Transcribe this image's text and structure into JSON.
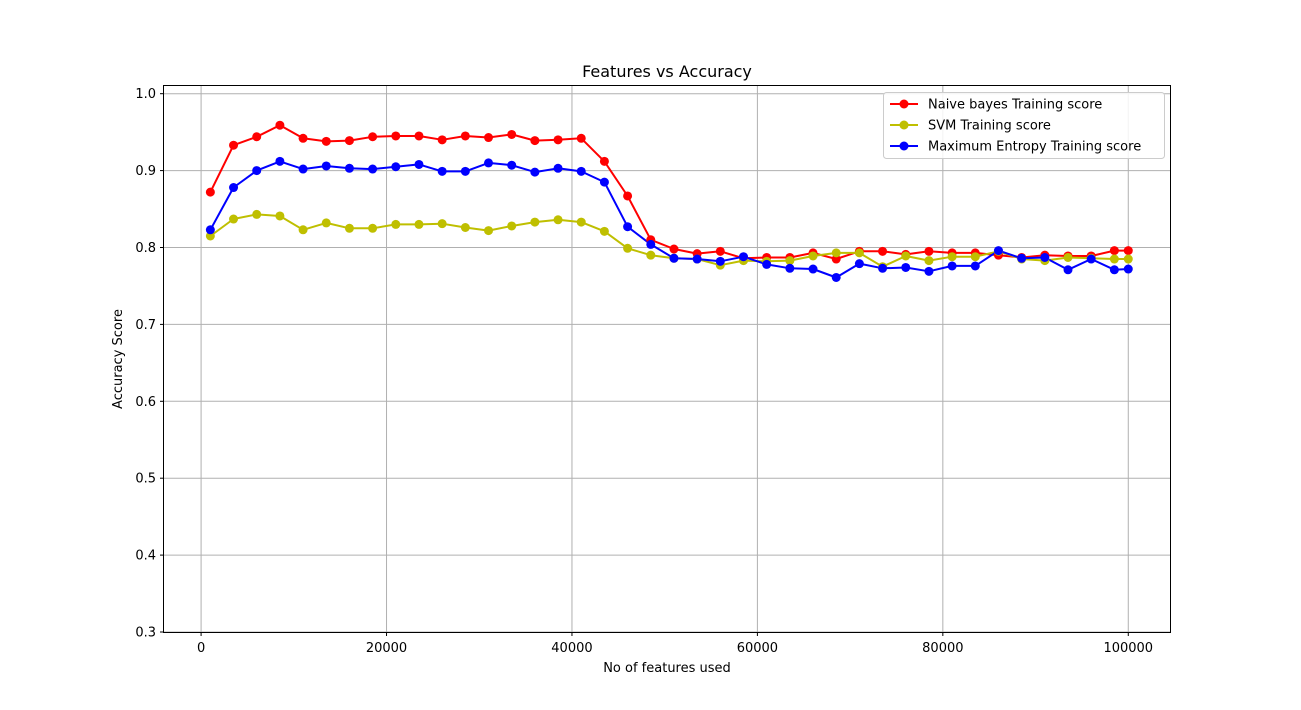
{
  "chart_data": {
    "type": "line",
    "title": "Features vs Accuracy",
    "xlabel": "No of features used",
    "ylabel": "Accuracy Score",
    "xlim": [
      -4000,
      104500
    ],
    "ylim": [
      0.3,
      1.01
    ],
    "xticks": [
      0,
      20000,
      40000,
      60000,
      80000,
      100000
    ],
    "yticks": [
      0.3,
      0.4,
      0.5,
      0.6,
      0.7,
      0.8,
      0.9,
      1.0
    ],
    "xtick_labels": [
      "0",
      "20000",
      "40000",
      "60000",
      "80000",
      "100000"
    ],
    "ytick_labels": [
      "0.3",
      "0.4",
      "0.5",
      "0.6",
      "0.7",
      "0.8",
      "0.9",
      "1.0"
    ],
    "grid": true,
    "legend_position": "top-right",
    "x": [
      1000,
      3500,
      6000,
      8500,
      11000,
      13500,
      16000,
      18500,
      21000,
      23500,
      26000,
      28500,
      31000,
      33500,
      36000,
      38500,
      41000,
      43500,
      46000,
      48500,
      51000,
      53500,
      56000,
      58500,
      61000,
      63500,
      66000,
      68500,
      71000,
      73500,
      76000,
      78500,
      81000,
      83500,
      86000,
      88500,
      91000,
      93500,
      96000,
      98500,
      100000
    ],
    "series": [
      {
        "name": "Naive bayes Training score",
        "color": "#ff0000",
        "values": [
          0.872,
          0.933,
          0.944,
          0.959,
          0.942,
          0.938,
          0.939,
          0.944,
          0.945,
          0.945,
          0.94,
          0.945,
          0.943,
          0.947,
          0.939,
          0.94,
          0.942,
          0.912,
          0.867,
          0.81,
          0.798,
          0.792,
          0.795,
          0.786,
          0.787,
          0.787,
          0.793,
          0.785,
          0.795,
          0.795,
          0.791,
          0.795,
          0.793,
          0.793,
          0.79,
          0.787,
          0.79,
          0.789,
          0.789,
          0.796,
          0.796
        ]
      },
      {
        "name": "SVM Training score",
        "color": "#bfbf00",
        "values": [
          0.815,
          0.837,
          0.843,
          0.841,
          0.823,
          0.832,
          0.825,
          0.825,
          0.83,
          0.83,
          0.831,
          0.826,
          0.822,
          0.828,
          0.833,
          0.836,
          0.833,
          0.821,
          0.799,
          0.79,
          0.786,
          0.785,
          0.777,
          0.783,
          0.782,
          0.783,
          0.789,
          0.793,
          0.793,
          0.775,
          0.789,
          0.783,
          0.788,
          0.788,
          0.795,
          0.785,
          0.783,
          0.787,
          0.786,
          0.785,
          0.785
        ]
      },
      {
        "name": "Maximum Entropy Training score",
        "color": "#0000ff",
        "values": [
          0.823,
          0.878,
          0.9,
          0.912,
          0.902,
          0.906,
          0.903,
          0.902,
          0.905,
          0.908,
          0.899,
          0.899,
          0.91,
          0.907,
          0.898,
          0.903,
          0.899,
          0.885,
          0.827,
          0.804,
          0.786,
          0.785,
          0.782,
          0.788,
          0.778,
          0.773,
          0.772,
          0.761,
          0.779,
          0.773,
          0.774,
          0.769,
          0.776,
          0.776,
          0.796,
          0.786,
          0.787,
          0.771,
          0.785,
          0.771,
          0.772
        ]
      }
    ]
  }
}
